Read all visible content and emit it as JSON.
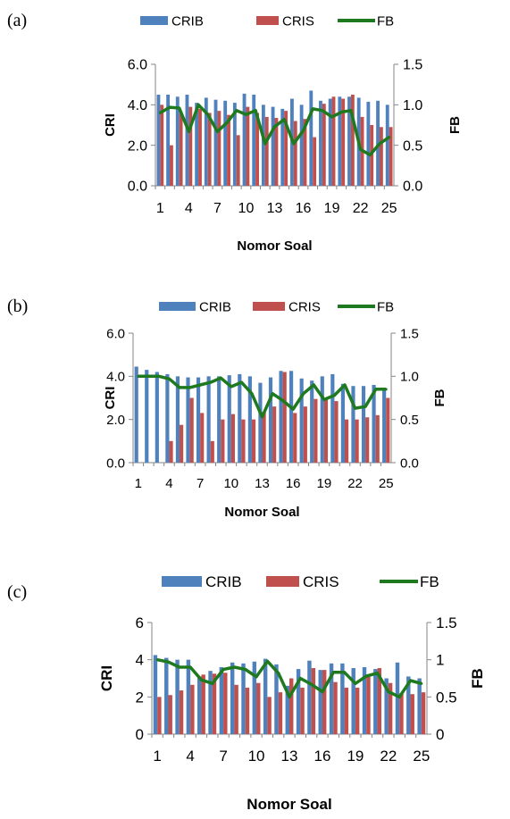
{
  "panels": [
    {
      "letter": "(a)",
      "chart_data": {
        "type": "bar",
        "categories": [
          "1",
          "2",
          "3",
          "4",
          "5",
          "6",
          "7",
          "8",
          "9",
          "10",
          "11",
          "12",
          "13",
          "14",
          "15",
          "16",
          "17",
          "18",
          "19",
          "20",
          "21",
          "22",
          "23",
          "24",
          "25"
        ],
        "x_tick_labels": [
          "1",
          "4",
          "7",
          "10",
          "13",
          "16",
          "19",
          "22",
          "25"
        ],
        "series": [
          {
            "name": "CRIB",
            "axis": "left",
            "kind": "bar",
            "color": "#4f81bd",
            "values": [
              4.5,
              4.5,
              4.4,
              4.5,
              4.1,
              4.35,
              4.25,
              4.2,
              4.1,
              4.55,
              4.5,
              4.0,
              3.9,
              3.8,
              4.3,
              4.0,
              4.7,
              4.2,
              4.3,
              4.4,
              4.4,
              4.35,
              4.15,
              4.2,
              4.0
            ]
          },
          {
            "name": "CRIS",
            "axis": "left",
            "kind": "bar",
            "color": "#c0504d",
            "values": [
              4.0,
              2.0,
              3.6,
              3.9,
              3.8,
              3.6,
              3.7,
              3.5,
              2.5,
              3.9,
              3.6,
              3.4,
              3.35,
              3.7,
              3.2,
              3.3,
              2.4,
              4.05,
              4.4,
              4.3,
              4.5,
              3.4,
              3.0,
              2.9,
              2.9
            ]
          },
          {
            "name": "FB",
            "axis": "right",
            "kind": "line",
            "color": "#1f7a1f",
            "values": [
              0.9,
              0.97,
              0.96,
              0.67,
              1.0,
              0.88,
              0.67,
              0.78,
              0.93,
              0.88,
              0.93,
              0.52,
              0.73,
              0.82,
              0.52,
              0.68,
              0.95,
              0.93,
              0.85,
              0.91,
              0.93,
              0.45,
              0.38,
              0.52,
              0.6
            ]
          }
        ],
        "xlabel": "Nomor Soal",
        "ylabel": "CRI",
        "y2label": "FB",
        "ylim": [
          0,
          6
        ],
        "y2lim": [
          0,
          1.5
        ],
        "y_ticks": [
          "0.0",
          "2.0",
          "4.0",
          "6.0"
        ],
        "y2_ticks": [
          "0.0",
          "0.5",
          "1.0",
          "1.5"
        ],
        "grid": false,
        "legend_position": "top"
      }
    },
    {
      "letter": "(b)",
      "chart_data": {
        "type": "bar",
        "categories": [
          "1",
          "2",
          "3",
          "4",
          "5",
          "6",
          "7",
          "8",
          "9",
          "10",
          "11",
          "12",
          "13",
          "14",
          "15",
          "16",
          "17",
          "18",
          "19",
          "20",
          "21",
          "22",
          "23",
          "24",
          "25"
        ],
        "x_tick_labels": [
          "1",
          "4",
          "7",
          "10",
          "13",
          "16",
          "19",
          "22",
          "25"
        ],
        "series": [
          {
            "name": "CRIB",
            "axis": "left",
            "kind": "bar",
            "color": "#4f81bd",
            "values": [
              4.45,
              4.3,
              4.2,
              4.1,
              4.0,
              3.95,
              3.95,
              4.0,
              4.0,
              4.05,
              4.1,
              4.0,
              3.7,
              3.95,
              4.25,
              4.25,
              3.9,
              3.8,
              4.0,
              4.1,
              3.65,
              3.55,
              3.55,
              3.6,
              3.4
            ]
          },
          {
            "name": "CRIS",
            "axis": "left",
            "kind": "bar",
            "color": "#c0504d",
            "values": [
              0,
              0,
              0,
              1.0,
              1.75,
              3.0,
              2.3,
              1.0,
              2.0,
              2.25,
              2.0,
              2.0,
              2.35,
              2.6,
              4.2,
              2.3,
              2.6,
              2.95,
              3.0,
              2.85,
              2.0,
              2.0,
              2.1,
              2.2,
              3.0
            ]
          },
          {
            "name": "FB",
            "axis": "right",
            "kind": "line",
            "color": "#1f7a1f",
            "values": [
              1.0,
              1.0,
              1.0,
              0.97,
              0.87,
              0.87,
              0.9,
              0.93,
              0.98,
              0.88,
              0.93,
              0.8,
              0.53,
              0.8,
              0.72,
              0.62,
              0.8,
              0.9,
              0.73,
              0.78,
              0.9,
              0.63,
              0.65,
              0.85,
              0.85
            ]
          }
        ],
        "xlabel": "Nomor Soal",
        "ylabel": "CRI",
        "y2label": "FB",
        "ylim": [
          0,
          6
        ],
        "y2lim": [
          0,
          1.5
        ],
        "y_ticks": [
          "0.0",
          "2.0",
          "4.0",
          "6.0"
        ],
        "y2_ticks": [
          "0.0",
          "0.5",
          "1.0",
          "1.5"
        ],
        "grid": false,
        "legend_position": "top"
      }
    },
    {
      "letter": "(c)",
      "chart_data": {
        "type": "bar",
        "categories": [
          "1",
          "2",
          "3",
          "4",
          "5",
          "6",
          "7",
          "8",
          "9",
          "10",
          "11",
          "12",
          "13",
          "14",
          "15",
          "16",
          "17",
          "18",
          "19",
          "20",
          "21",
          "22",
          "23",
          "24",
          "25"
        ],
        "x_tick_labels": [
          "1",
          "4",
          "7",
          "10",
          "13",
          "16",
          "19",
          "22",
          "25"
        ],
        "series": [
          {
            "name": "CRIB",
            "axis": "left",
            "kind": "bar",
            "color": "#4f81bd",
            "values": [
              4.25,
              4.1,
              4.0,
              4.0,
              3.1,
              3.4,
              3.6,
              3.85,
              3.8,
              3.9,
              4.05,
              3.75,
              2.6,
              3.5,
              3.95,
              3.45,
              3.8,
              3.8,
              3.55,
              3.6,
              3.5,
              3.0,
              3.85,
              3.1,
              3.0
            ]
          },
          {
            "name": "CRIS",
            "axis": "left",
            "kind": "bar",
            "color": "#c0504d",
            "values": [
              2.0,
              2.1,
              2.35,
              2.65,
              3.2,
              3.25,
              3.3,
              2.65,
              2.5,
              2.75,
              2.0,
              2.25,
              3.0,
              2.5,
              3.55,
              3.45,
              2.8,
              2.5,
              2.5,
              3.2,
              3.55,
              2.75,
              2.2,
              2.15,
              2.25
            ]
          },
          {
            "name": "FB",
            "axis": "right",
            "kind": "line",
            "color": "#1f7a1f",
            "values": [
              1.0,
              0.97,
              0.9,
              0.9,
              0.73,
              0.68,
              0.87,
              0.9,
              0.87,
              0.77,
              0.98,
              0.82,
              0.5,
              0.75,
              0.67,
              0.57,
              0.83,
              0.83,
              0.68,
              0.78,
              0.82,
              0.57,
              0.5,
              0.72,
              0.68
            ]
          }
        ],
        "xlabel": "Nomor Soal",
        "ylabel": "CRI",
        "y2label": "FB",
        "ylim": [
          0,
          6
        ],
        "y2lim": [
          0,
          1.5
        ],
        "y_ticks": [
          "0",
          "2",
          "4",
          "6"
        ],
        "y2_ticks": [
          "0",
          "0.5",
          "1",
          "1.5"
        ],
        "grid": false,
        "legend_position": "top"
      }
    }
  ]
}
